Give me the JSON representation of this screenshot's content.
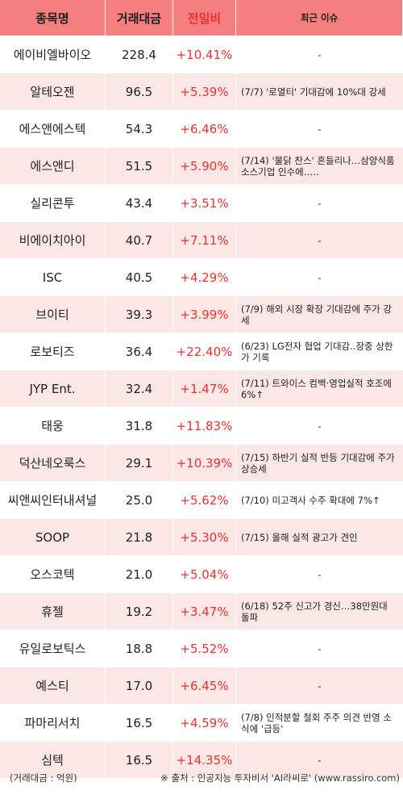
{
  "header": {
    "col1": "종목명",
    "col2": "거래대금",
    "col3": "전일비",
    "col4": "최근 이슈"
  },
  "rows": [
    {
      "name": "에이비엘바이오",
      "value": "228.4",
      "change": "+10.41%",
      "issue": "-"
    },
    {
      "name": "알테오젠",
      "value": "96.5",
      "change": "+5.39%",
      "issue": "(7/7) '로열티' 기대감에 10%대 강세"
    },
    {
      "name": "에스앤에스텍",
      "value": "54.3",
      "change": "+6.46%",
      "issue": "-"
    },
    {
      "name": "에스앤디",
      "value": "51.5",
      "change": "+5.90%",
      "issue": "(7/14) '불닭 찬스' 흔들리나…삼양식품 소스기업 인수에….."
    },
    {
      "name": "실리콘투",
      "value": "43.4",
      "change": "+3.51%",
      "issue": "-"
    },
    {
      "name": "비에이치아이",
      "value": "40.7",
      "change": "+7.11%",
      "issue": "-"
    },
    {
      "name": "ISC",
      "value": "40.5",
      "change": "+4.29%",
      "issue": "-"
    },
    {
      "name": "브이티",
      "value": "39.3",
      "change": "+3.99%",
      "issue": "(7/9) 해외 시장 확장 기대감에 주가 강세"
    },
    {
      "name": "로보티즈",
      "value": "36.4",
      "change": "+22.40%",
      "issue": "(6/23) LG전자 협업 기대감..장중 상한가 기록"
    },
    {
      "name": "JYP Ent.",
      "value": "32.4",
      "change": "+1.47%",
      "issue": "(7/11) 트와이스 컴백·영업실적 호조에 6%↑"
    },
    {
      "name": "태웅",
      "value": "31.8",
      "change": "+11.83%",
      "issue": "-"
    },
    {
      "name": "덕산네오룩스",
      "value": "29.1",
      "change": "+10.39%",
      "issue": "(7/15) 하반기 실적 반등 기대감에 주가 상승세"
    },
    {
      "name": "씨앤씨인터내셔널",
      "value": "25.0",
      "change": "+5.62%",
      "issue": "(7/10) 미고객사 수주 확대에 7%↑"
    },
    {
      "name": "SOOP",
      "value": "21.8",
      "change": "+5.30%",
      "issue": "(7/15) 올해 실적 광고가 견인"
    },
    {
      "name": "오스코텍",
      "value": "21.0",
      "change": "+5.04%",
      "issue": "-"
    },
    {
      "name": "휴젤",
      "value": "19.2",
      "change": "+3.47%",
      "issue": "(6/18) 52주 신고가 경신…38만원대 돌파"
    },
    {
      "name": "유일로보틱스",
      "value": "18.8",
      "change": "+5.52%",
      "issue": "-"
    },
    {
      "name": "예스티",
      "value": "17.0",
      "change": "+6.45%",
      "issue": "-"
    },
    {
      "name": "파마리서치",
      "value": "16.5",
      "change": "+4.59%",
      "issue": "(7/8) 인적분할 철회 주주 의견 반영 소식에 '급등'"
    },
    {
      "name": "심텍",
      "value": "16.5",
      "change": "+14.35%",
      "issue": "-"
    }
  ],
  "footer": {
    "unit": "(거래대금 : 억원)",
    "source": "※ 출처 : 인공지능 투자비서 'AI라씨로' (www.rassiro.com)"
  },
  "colors": {
    "header_bg": "#f57f7f",
    "stripe_bg": "#fbe7e5",
    "change_text": "#e8322f"
  }
}
